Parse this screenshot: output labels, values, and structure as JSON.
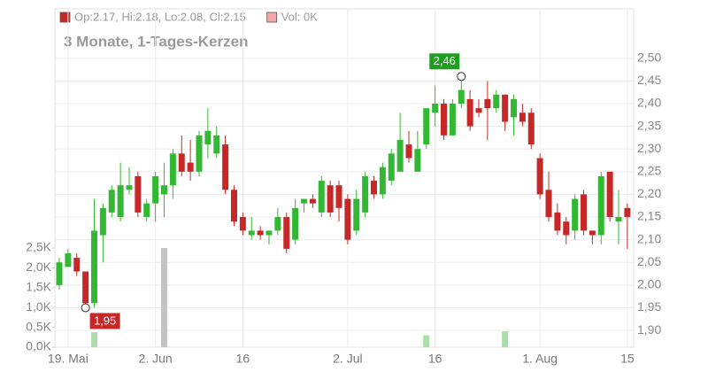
{
  "chart_data": {
    "type": "candlestick",
    "subtitle": "3 Monate, 1-Tages-Kerzen",
    "legend": [
      {
        "label": "Op:2.17, Hi:2.18, Lo:2.08, Cl:2.15",
        "color": "#c62828"
      },
      {
        "label": "Vol: 0K",
        "color": "#f4a6a6"
      }
    ],
    "categories": [
      null,
      "19. Mai",
      null,
      null,
      null,
      null,
      null,
      null,
      null,
      null,
      null,
      "2. Jun",
      null,
      null,
      null,
      null,
      null,
      null,
      null,
      null,
      null,
      "16",
      null,
      null,
      null,
      null,
      null,
      null,
      null,
      null,
      null,
      null,
      null,
      "2. Jul",
      null,
      null,
      null,
      null,
      null,
      null,
      null,
      null,
      null,
      "16",
      null,
      null,
      null,
      null,
      null,
      null,
      null,
      null,
      null,
      null,
      null,
      "1. Aug",
      null,
      null,
      null,
      null,
      null,
      null,
      null,
      null,
      null,
      "15"
    ],
    "open": [
      2.0,
      2.04,
      2.06,
      2.03,
      1.96,
      2.11,
      2.16,
      2.15,
      2.21,
      2.24,
      2.15,
      2.18,
      2.2,
      2.22,
      2.29,
      2.27,
      2.25,
      2.31,
      2.29,
      2.31,
      2.21,
      2.15,
      2.11,
      2.12,
      2.11,
      2.12,
      2.15,
      2.1,
      2.18,
      2.19,
      2.16,
      2.22,
      2.22,
      2.19,
      2.12,
      2.16,
      2.23,
      2.2,
      2.23,
      2.25,
      2.31,
      2.25,
      2.31,
      2.38,
      2.4,
      2.33,
      2.4,
      2.41,
      2.39,
      2.41,
      2.39,
      2.42,
      2.37,
      2.38,
      2.38,
      2.28,
      2.21,
      2.16,
      2.14,
      2.12,
      2.2,
      2.12,
      2.11,
      2.25,
      2.14,
      2.17
    ],
    "high": [
      2.06,
      2.08,
      2.07,
      2.03,
      2.19,
      2.18,
      2.22,
      2.27,
      2.26,
      2.25,
      2.19,
      2.25,
      2.27,
      2.3,
      2.33,
      2.32,
      2.34,
      2.39,
      2.35,
      2.33,
      2.22,
      2.16,
      2.15,
      2.13,
      2.12,
      2.17,
      2.16,
      2.19,
      2.19,
      2.2,
      2.24,
      2.23,
      2.23,
      2.2,
      2.21,
      2.25,
      2.24,
      2.27,
      2.3,
      2.38,
      2.34,
      2.34,
      2.39,
      2.44,
      2.41,
      2.41,
      2.46,
      2.43,
      2.41,
      2.45,
      2.43,
      2.42,
      2.42,
      2.4,
      2.39,
      2.29,
      2.25,
      2.18,
      2.15,
      2.2,
      2.21,
      2.12,
      2.25,
      2.25,
      2.21,
      2.18
    ],
    "low": [
      1.99,
      2.04,
      2.02,
      1.95,
      1.95,
      2.05,
      2.15,
      2.14,
      2.2,
      2.15,
      2.14,
      2.14,
      2.15,
      2.19,
      2.24,
      2.23,
      2.24,
      2.28,
      2.28,
      2.2,
      2.13,
      2.11,
      2.1,
      2.1,
      2.09,
      2.11,
      2.07,
      2.09,
      2.16,
      2.17,
      2.15,
      2.15,
      2.14,
      2.09,
      2.11,
      2.15,
      2.19,
      2.19,
      2.22,
      2.25,
      2.27,
      2.25,
      2.3,
      2.35,
      2.32,
      2.33,
      2.39,
      2.34,
      2.37,
      2.32,
      2.38,
      2.34,
      2.33,
      2.35,
      2.3,
      2.19,
      2.14,
      2.11,
      2.09,
      2.1,
      2.11,
      2.09,
      2.09,
      2.14,
      2.09,
      2.08
    ],
    "close": [
      2.05,
      2.07,
      2.03,
      1.96,
      2.12,
      2.17,
      2.21,
      2.22,
      2.22,
      2.16,
      2.18,
      2.24,
      2.22,
      2.29,
      2.25,
      2.25,
      2.33,
      2.34,
      2.33,
      2.21,
      2.14,
      2.12,
      2.12,
      2.11,
      2.12,
      2.15,
      2.08,
      2.17,
      2.19,
      2.18,
      2.23,
      2.16,
      2.17,
      2.1,
      2.19,
      2.24,
      2.2,
      2.26,
      2.29,
      2.32,
      2.28,
      2.3,
      2.39,
      2.4,
      2.33,
      2.4,
      2.43,
      2.35,
      2.38,
      2.39,
      2.42,
      2.36,
      2.41,
      2.36,
      2.31,
      2.2,
      2.15,
      2.12,
      2.11,
      2.19,
      2.12,
      2.11,
      2.24,
      2.15,
      2.15,
      2.15
    ],
    "up_color": "#33b833",
    "down_color": "#c62828",
    "ylim": [
      1.863,
      2.609
    ],
    "yticks": [
      {
        "value": 1.9,
        "label": "1,90"
      },
      {
        "value": 1.95,
        "label": "1,95"
      },
      {
        "value": 2.0,
        "label": "2,00"
      },
      {
        "value": 2.05,
        "label": "2,05"
      },
      {
        "value": 2.1,
        "label": "2,10"
      },
      {
        "value": 2.15,
        "label": "2,15"
      },
      {
        "value": 2.2,
        "label": "2,20"
      },
      {
        "value": 2.25,
        "label": "2,25"
      },
      {
        "value": 2.3,
        "label": "2,30"
      },
      {
        "value": 2.35,
        "label": "2,35"
      },
      {
        "value": 2.4,
        "label": "2,40"
      },
      {
        "value": 2.45,
        "label": "2,45"
      },
      {
        "value": 2.5,
        "label": "2,50"
      }
    ],
    "volume": {
      "values": [
        null,
        null,
        null,
        null,
        0.38,
        null,
        null,
        null,
        null,
        null,
        null,
        null,
        2.5,
        null,
        null,
        null,
        null,
        null,
        null,
        null,
        null,
        null,
        null,
        null,
        null,
        null,
        null,
        null,
        null,
        null,
        null,
        null,
        null,
        null,
        null,
        null,
        null,
        null,
        null,
        null,
        null,
        null,
        0.3,
        null,
        null,
        null,
        null,
        null,
        null,
        null,
        null,
        0.4,
        null,
        null,
        null,
        null,
        null,
        null,
        null,
        null,
        null,
        null,
        null,
        null,
        null,
        null
      ],
      "colors": {
        "4": "#a8e0a8",
        "12": "#c4c4c4",
        "42": "#a8e0a8",
        "51": "#a8e0a8"
      }
    },
    "y2lim": [
      0,
      8.53
    ],
    "y2ticks": [
      {
        "value": 0,
        "label": "0,0K"
      },
      {
        "value": 0.5,
        "label": "0,5K"
      },
      {
        "value": 1.0,
        "label": "1,0K"
      },
      {
        "value": 1.5,
        "label": "1,5K"
      },
      {
        "value": 2.0,
        "label": "2,0K"
      },
      {
        "value": 2.5,
        "label": "2,5K"
      }
    ],
    "annotations": [
      {
        "at": 46,
        "value": 2.46,
        "label": "2,46",
        "color": "#1e9e1e"
      },
      {
        "at": 3,
        "value": 1.95,
        "label": "1,95",
        "color": "#c62828"
      }
    ],
    "grid": true
  }
}
